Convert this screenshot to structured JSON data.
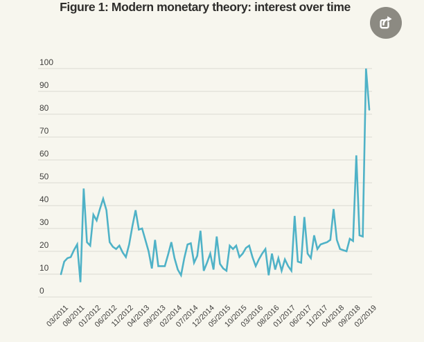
{
  "page": {
    "background": "#f7f6ee"
  },
  "header": {
    "title": "Figure 1: Modern monetary theory: interest over time",
    "share_icon": "share-export-icon"
  },
  "chart_data": {
    "type": "line",
    "title": "Figure 1: Modern monetary theory: interest over time",
    "xlabel": "",
    "ylabel": "",
    "ylim": [
      0,
      100
    ],
    "grid": "horizontal-only",
    "legend": "none",
    "line_color": "#4fb2c7",
    "grid_color": "#dbdad2",
    "label_color": "#3f3e3c",
    "x": [
      "03/2011",
      "04/2011",
      "05/2011",
      "06/2011",
      "07/2011",
      "08/2011",
      "09/2011",
      "10/2011",
      "11/2011",
      "12/2011",
      "01/2012",
      "02/2012",
      "03/2012",
      "04/2012",
      "05/2012",
      "06/2012",
      "07/2012",
      "08/2012",
      "09/2012",
      "10/2012",
      "11/2012",
      "12/2012",
      "01/2013",
      "02/2013",
      "03/2013",
      "04/2013",
      "05/2013",
      "06/2013",
      "07/2013",
      "08/2013",
      "09/2013",
      "10/2013",
      "11/2013",
      "12/2013",
      "01/2014",
      "02/2014",
      "03/2014",
      "04/2014",
      "05/2014",
      "06/2014",
      "07/2014",
      "08/2014",
      "09/2014",
      "10/2014",
      "11/2014",
      "12/2014",
      "01/2015",
      "02/2015",
      "03/2015",
      "04/2015",
      "05/2015",
      "06/2015",
      "07/2015",
      "08/2015",
      "09/2015",
      "10/2015",
      "11/2015",
      "12/2015",
      "01/2016",
      "02/2016",
      "03/2016",
      "04/2016",
      "05/2016",
      "06/2016",
      "07/2016",
      "08/2016",
      "09/2016",
      "10/2016",
      "11/2016",
      "12/2016",
      "01/2017",
      "02/2017",
      "03/2017",
      "04/2017",
      "05/2017",
      "06/2017",
      "07/2017",
      "08/2017",
      "09/2017",
      "10/2017",
      "11/2017",
      "12/2017",
      "01/2018",
      "02/2018",
      "03/2018",
      "04/2018",
      "05/2018",
      "06/2018",
      "07/2018",
      "08/2018",
      "09/2018",
      "10/2018",
      "11/2018",
      "12/2018",
      "01/2019",
      "02/2019"
    ],
    "values": [
      10,
      15.5,
      17,
      17.5,
      20.5,
      23,
      6.5,
      47.5,
      24,
      22.5,
      36,
      33.5,
      38.5,
      43,
      38,
      24,
      22,
      21,
      22.5,
      19.5,
      17.5,
      23,
      31,
      38,
      29.5,
      30,
      25,
      20,
      12.5,
      25,
      13.5,
      13.5,
      13.5,
      18.5,
      24,
      17,
      12,
      9.5,
      17,
      23,
      23.5,
      15,
      18,
      29,
      11.5,
      15,
      19,
      12,
      26.5,
      14.5,
      12.5,
      11.5,
      22.5,
      21,
      22.5,
      17.5,
      19,
      21.5,
      22.5,
      17.5,
      13.5,
      16.5,
      19,
      21,
      9.5,
      19,
      12,
      17,
      11.5,
      16.5,
      13.5,
      11.5,
      35.5,
      15.5,
      15,
      35,
      19,
      17,
      27,
      21,
      23,
      23.5,
      24,
      25,
      38.5,
      25,
      21,
      20.5,
      20,
      25.5,
      24.5,
      62,
      27,
      26.5,
      100,
      82
    ],
    "x_tick_labels": [
      "03/2011",
      "08/2011",
      "01/2012",
      "06/2012",
      "11/2012",
      "04/2013",
      "09/2013",
      "02/2014",
      "07/2014",
      "12/2014",
      "05/2015",
      "10/2015",
      "03/2016",
      "08/2016",
      "01/2017",
      "06/2017",
      "11/2017",
      "04/2018",
      "09/2018",
      "02/2019"
    ],
    "y_ticks": [
      0,
      10,
      20,
      30,
      40,
      50,
      60,
      70,
      80,
      90,
      100
    ]
  }
}
